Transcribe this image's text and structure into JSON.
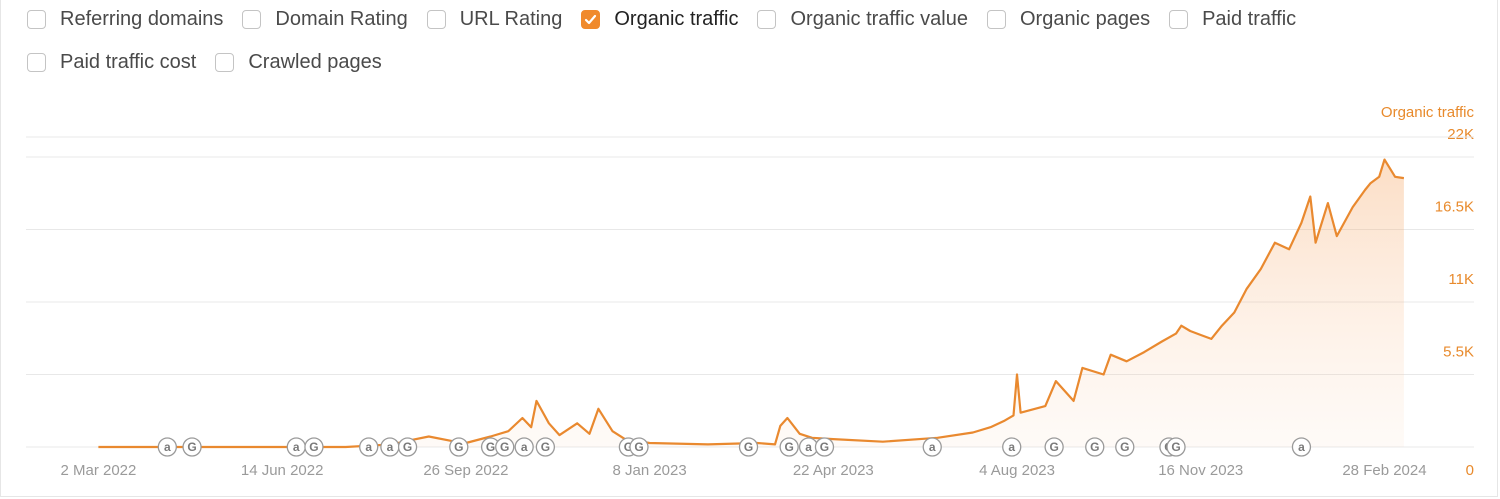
{
  "metrics": {
    "row1": [
      {
        "label": "Referring domains",
        "checked": false
      },
      {
        "label": "Domain Rating",
        "checked": false
      },
      {
        "label": "URL Rating",
        "checked": false
      },
      {
        "label": "Organic traffic",
        "checked": true
      },
      {
        "label": "Organic traffic value",
        "checked": false
      },
      {
        "label": "Organic pages",
        "checked": false
      },
      {
        "label": "Paid traffic",
        "checked": false
      }
    ],
    "row2": [
      {
        "label": "Paid traffic cost",
        "checked": false
      },
      {
        "label": "Crawled pages",
        "checked": false
      }
    ]
  },
  "colors": {
    "accent": "#f08a2c",
    "line": "#e9892f",
    "grid": "#e8e8e8",
    "axis_text": "#9a9a9a"
  },
  "chart_data": {
    "type": "area",
    "series": [
      {
        "name": "Organic traffic",
        "x": [
          "2022-03-02",
          "2022-04-15",
          "2022-06-14",
          "2022-07-20",
          "2022-08-15",
          "2022-08-25",
          "2022-09-05",
          "2022-09-20",
          "2022-09-26",
          "2022-10-10",
          "2022-10-20",
          "2022-10-28",
          "2022-11-02",
          "2022-11-05",
          "2022-11-12",
          "2022-11-18",
          "2022-11-28",
          "2022-12-05",
          "2022-12-10",
          "2022-12-18",
          "2022-12-25",
          "2023-01-08",
          "2023-02-10",
          "2023-03-10",
          "2023-03-20",
          "2023-03-23",
          "2023-03-27",
          "2023-04-03",
          "2023-04-10",
          "2023-04-22",
          "2023-05-20",
          "2023-06-20",
          "2023-07-10",
          "2023-07-20",
          "2023-07-28",
          "2023-08-02",
          "2023-08-04",
          "2023-08-06",
          "2023-08-20",
          "2023-08-26",
          "2023-09-05",
          "2023-09-10",
          "2023-09-22",
          "2023-09-26",
          "2023-10-05",
          "2023-10-15",
          "2023-10-25",
          "2023-11-02",
          "2023-11-05",
          "2023-11-10",
          "2023-11-16",
          "2023-11-22",
          "2023-11-28",
          "2023-12-05",
          "2023-12-12",
          "2023-12-20",
          "2023-12-28",
          "2024-01-05",
          "2024-01-12",
          "2024-01-17",
          "2024-01-20",
          "2024-01-27",
          "2024-02-01",
          "2024-02-10",
          "2024-02-17",
          "2024-02-20",
          "2024-02-25",
          "2024-02-28",
          "2024-03-05",
          "2024-03-10"
        ],
        "values": [
          0,
          0,
          0,
          0,
          200,
          500,
          800,
          400,
          300,
          800,
          1200,
          2200,
          1500,
          3500,
          1800,
          900,
          1800,
          1000,
          2900,
          1200,
          600,
          300,
          200,
          300,
          200,
          1600,
          2200,
          1000,
          700,
          600,
          400,
          700,
          1100,
          1500,
          2000,
          2400,
          5500,
          2600,
          3100,
          5000,
          3500,
          6000,
          5500,
          7000,
          6500,
          7200,
          8000,
          8600,
          9200,
          8800,
          8500,
          8200,
          9200,
          10200,
          12000,
          13500,
          15500,
          15000,
          17000,
          19000,
          15500,
          18500,
          16000,
          18200,
          19500,
          20000,
          20500,
          21800,
          20500,
          20400
        ]
      }
    ],
    "x_ticks": [
      "2 Mar 2022",
      "14 Jun 2022",
      "26 Sep 2022",
      "8 Jan 2023",
      "22 Apr 2023",
      "4 Aug 2023",
      "16 Nov 2023",
      "28 Feb 2024"
    ],
    "y_ticks": [
      "0",
      "5.5K",
      "11K",
      "16.5K",
      "22K"
    ],
    "ylim": [
      0,
      22000
    ],
    "xlim": [
      "2022-01-20",
      "2024-03-31"
    ],
    "ylabel": "Organic traffic",
    "grid": true,
    "annotations": [
      {
        "date": "2022-04-10",
        "symbol": "a"
      },
      {
        "date": "2022-04-24",
        "symbol": "G"
      },
      {
        "date": "2022-06-22",
        "symbol": "a"
      },
      {
        "date": "2022-07-02",
        "symbol": "G"
      },
      {
        "date": "2022-08-02",
        "symbol": "a"
      },
      {
        "date": "2022-08-14",
        "symbol": "a"
      },
      {
        "date": "2022-08-24",
        "symbol": "G"
      },
      {
        "date": "2022-09-22",
        "symbol": "G"
      },
      {
        "date": "2022-10-10",
        "symbol": "G"
      },
      {
        "date": "2022-10-18",
        "symbol": "G"
      },
      {
        "date": "2022-10-29",
        "symbol": "a"
      },
      {
        "date": "2022-11-10",
        "symbol": "G"
      },
      {
        "date": "2022-12-27",
        "symbol": "G"
      },
      {
        "date": "2023-01-02",
        "symbol": "G"
      },
      {
        "date": "2023-03-05",
        "symbol": "G"
      },
      {
        "date": "2023-03-28",
        "symbol": "G"
      },
      {
        "date": "2023-04-08",
        "symbol": "a"
      },
      {
        "date": "2023-04-17",
        "symbol": "G"
      },
      {
        "date": "2023-06-17",
        "symbol": "a"
      },
      {
        "date": "2023-08-01",
        "symbol": "a"
      },
      {
        "date": "2023-08-25",
        "symbol": "G"
      },
      {
        "date": "2023-09-17",
        "symbol": "G"
      },
      {
        "date": "2023-10-04",
        "symbol": "G"
      },
      {
        "date": "2023-10-29",
        "symbol": "G"
      },
      {
        "date": "2023-11-02",
        "symbol": "G"
      },
      {
        "date": "2024-01-12",
        "symbol": "a"
      }
    ]
  }
}
